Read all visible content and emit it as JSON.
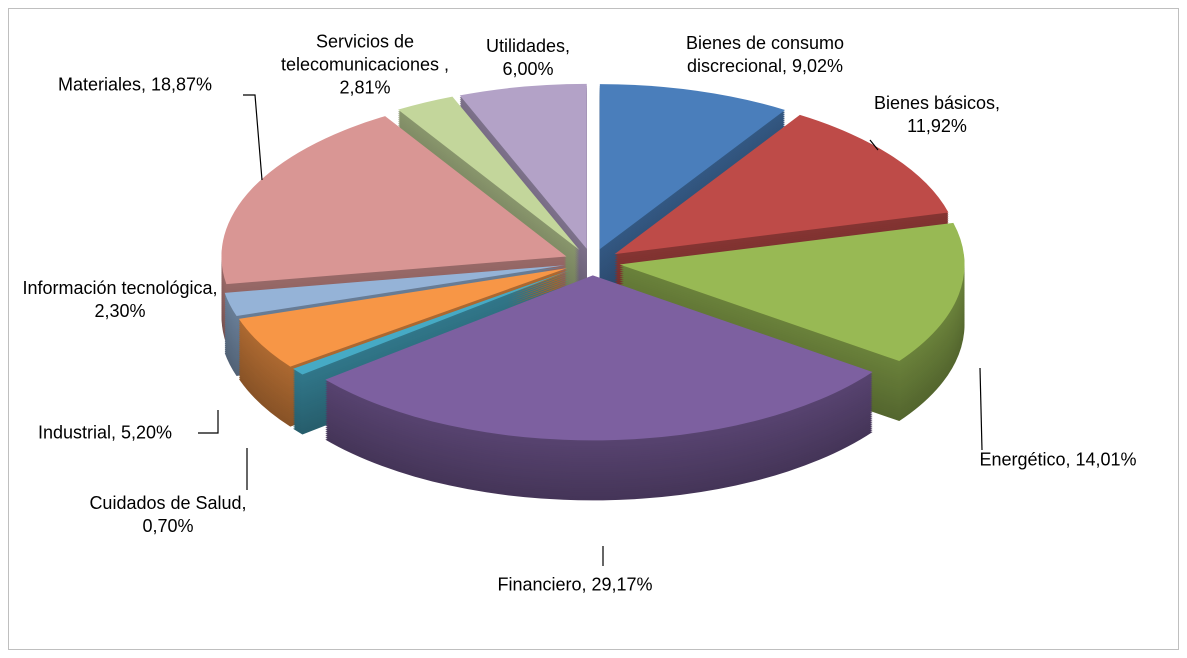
{
  "chart_data": {
    "type": "pie3d",
    "exploded": true,
    "values": [
      9.02,
      11.92,
      14.01,
      29.17,
      0.7,
      5.2,
      2.3,
      18.87,
      2.81,
      6.0
    ],
    "value_labels": [
      "Bienes de consumo discrecional, 9,02%",
      "Bienes básicos, 11,92%",
      "Energético, 14,01%",
      "Financiero, 29,17%",
      "Cuidados de Salud, 0,70%",
      "Industrial, 5,20%",
      "Información tecnológica, 2,30%",
      "Materiales, 18,87%",
      "Servicios de telecomunicaciones , 2,81%",
      "Utilidades, 6,00%"
    ],
    "colors": [
      "#4a7ebb",
      "#be4b48",
      "#98b954",
      "#7d60a0",
      "#46aac5",
      "#f79646",
      "#95b3d7",
      "#d99694",
      "#c3d69b",
      "#b3a2c7"
    ]
  }
}
